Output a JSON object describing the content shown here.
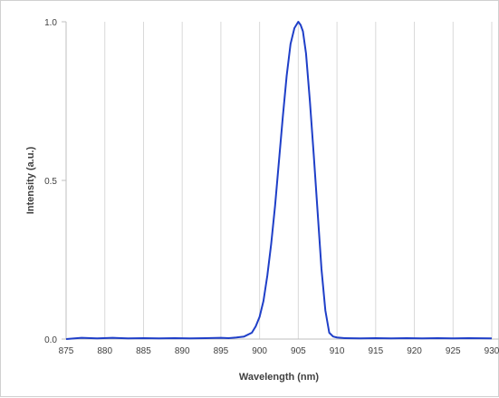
{
  "chart_data": {
    "type": "line",
    "title": "",
    "xlabel": "Wavelength (nm)",
    "ylabel": "Intensity (a.u.)",
    "xlim": [
      875,
      930
    ],
    "ylim": [
      0,
      1.0
    ],
    "x_ticks": [
      875,
      880,
      885,
      890,
      895,
      900,
      905,
      910,
      915,
      920,
      925,
      930
    ],
    "y_ticks": [
      0,
      0.5,
      1.0
    ],
    "x_tick_labels": [
      "875",
      "880",
      "885",
      "890",
      "895",
      "900",
      "905",
      "910",
      "915",
      "920",
      "925",
      "930"
    ],
    "y_tick_labels": [
      "0.0",
      "0.5",
      "1.0"
    ],
    "grid": "vertical",
    "legend": "none",
    "series": [
      {
        "color": "#1f3fc8",
        "x": [
          875,
          877,
          879,
          881,
          883,
          885,
          887,
          889,
          891,
          893,
          895,
          896,
          897,
          898,
          899,
          899.5,
          900,
          900.5,
          901,
          901.5,
          902,
          902.5,
          903,
          903.5,
          904,
          904.5,
          905,
          905.3,
          905.6,
          906,
          906.5,
          907,
          907.5,
          908,
          908.5,
          909,
          909.5,
          910,
          911,
          913,
          915,
          917,
          919,
          921,
          923,
          925,
          927,
          930
        ],
        "y": [
          0.0,
          0.004,
          0.002,
          0.004,
          0.002,
          0.003,
          0.002,
          0.003,
          0.002,
          0.003,
          0.004,
          0.003,
          0.005,
          0.008,
          0.02,
          0.04,
          0.07,
          0.12,
          0.2,
          0.3,
          0.42,
          0.56,
          0.7,
          0.83,
          0.93,
          0.98,
          1.0,
          0.99,
          0.97,
          0.9,
          0.75,
          0.58,
          0.4,
          0.22,
          0.09,
          0.02,
          0.008,
          0.005,
          0.003,
          0.002,
          0.003,
          0.002,
          0.003,
          0.002,
          0.003,
          0.002,
          0.003,
          0.002
        ]
      }
    ]
  }
}
